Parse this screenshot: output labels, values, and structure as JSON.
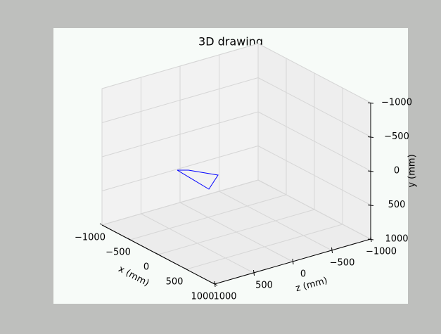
{
  "chart_data": {
    "type": "line3d",
    "title": "3D drawing",
    "x_label": "x (mm)",
    "y_label": "y (mm)",
    "z_label": "z (mm)",
    "xlim": [
      -1000,
      1000
    ],
    "ylim": [
      -1000,
      1000
    ],
    "zlim": [
      -1000,
      1000
    ],
    "y_inverted": true,
    "xticks": [
      {
        "value": -1000,
        "label": "−1000"
      },
      {
        "value": -500,
        "label": "−500"
      },
      0,
      500,
      1000
    ],
    "yticks": [
      {
        "value": -1000,
        "label": "−1000"
      },
      {
        "value": -500,
        "label": "−500"
      },
      0,
      500,
      1000
    ],
    "zticks": [
      {
        "value": -1000,
        "label": "−1000"
      },
      {
        "value": -500,
        "label": "−500"
      },
      0,
      500,
      1000
    ],
    "grid": true,
    "series": [
      {
        "color": "#0000ff",
        "x": [
          -356,
          -156,
          369,
          206,
          -356
        ],
        "y": [
          82,
          -4,
          -160,
          117,
          82
        ],
        "z": [
          500,
          500,
          500,
          500,
          500
        ]
      }
    ]
  }
}
